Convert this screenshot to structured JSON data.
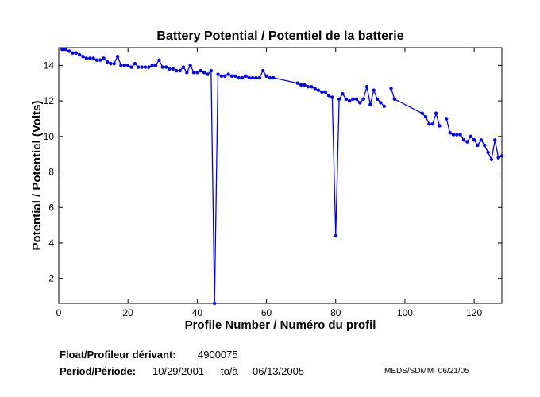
{
  "chart_data": {
    "type": "line",
    "title": "Battery Potential / Potentiel de la batterie",
    "xlabel": "Profile Number / Numéro du profil",
    "ylabel": "Potential / Potentiel (Volts)",
    "xlim": [
      0,
      128
    ],
    "ylim": [
      0.6,
      15
    ],
    "xticks": [
      0,
      20,
      40,
      60,
      80,
      100,
      120
    ],
    "yticks": [
      2,
      4,
      6,
      8,
      10,
      12,
      14
    ],
    "grid": false,
    "color": "#0000ff",
    "x": [
      1,
      2,
      3,
      4,
      5,
      6,
      7,
      8,
      9,
      10,
      11,
      12,
      13,
      14,
      15,
      16,
      17,
      18,
      19,
      20,
      21,
      22,
      23,
      24,
      25,
      26,
      27,
      28,
      29,
      30,
      31,
      32,
      33,
      34,
      35,
      36,
      37,
      38,
      39,
      40,
      41,
      42,
      43,
      44,
      45,
      46,
      47,
      48,
      49,
      50,
      51,
      52,
      53,
      54,
      55,
      56,
      57,
      58,
      59,
      60,
      61,
      62,
      69,
      70,
      71,
      72,
      73,
      74,
      75,
      76,
      77,
      78,
      79,
      80,
      81,
      82,
      83,
      84,
      85,
      86,
      87,
      88,
      89,
      90,
      91,
      92,
      93,
      94,
      95,
      96,
      97,
      105,
      106,
      107,
      108,
      109,
      110,
      111,
      112,
      113,
      114,
      115,
      116,
      117,
      118,
      119,
      120,
      121,
      122,
      123,
      124,
      125,
      126,
      127,
      128
    ],
    "y": [
      14.9,
      14.9,
      14.8,
      14.7,
      14.7,
      14.6,
      14.5,
      14.4,
      14.4,
      14.4,
      14.3,
      14.3,
      14.4,
      14.2,
      14.1,
      14.1,
      14.5,
      14.0,
      14.0,
      14.0,
      13.9,
      14.1,
      13.9,
      13.9,
      13.9,
      13.9,
      14.0,
      14.0,
      14.3,
      13.9,
      13.9,
      13.8,
      13.8,
      13.7,
      13.7,
      13.9,
      13.6,
      14.0,
      13.6,
      13.6,
      13.7,
      13.6,
      13.5,
      13.7,
      0.6,
      13.5,
      13.4,
      13.4,
      13.5,
      13.4,
      13.4,
      13.3,
      13.3,
      13.4,
      13.3,
      13.3,
      13.3,
      13.3,
      13.7,
      13.4,
      13.3,
      13.3,
      13.0,
      12.9,
      12.9,
      12.8,
      12.8,
      12.7,
      12.6,
      12.5,
      12.5,
      12.3,
      12.2,
      4.4,
      12.1,
      12.4,
      12.1,
      12.0,
      12.1,
      12.1,
      11.9,
      12.1,
      12.8,
      11.8,
      12.6,
      12.1,
      11.9,
      11.7,
      null,
      12.7,
      12.1,
      11.3,
      11.1,
      10.7,
      10.7,
      11.3,
      10.6,
      null,
      11.0,
      10.2,
      10.1,
      10.1,
      10.1,
      9.8,
      9.7,
      10.0,
      9.8,
      9.5,
      9.8,
      9.5,
      9.1,
      8.7,
      9.8,
      8.8,
      8.9
    ]
  },
  "footer": {
    "float_label": "Float/Profileur dérivant:",
    "float_id": "4900075",
    "period_label": "Period/Période:",
    "start_date": "10/29/2001",
    "to_label": "to/à",
    "end_date": "06/13/2005",
    "credit": "MEDS/SDMM  06/21/05"
  }
}
